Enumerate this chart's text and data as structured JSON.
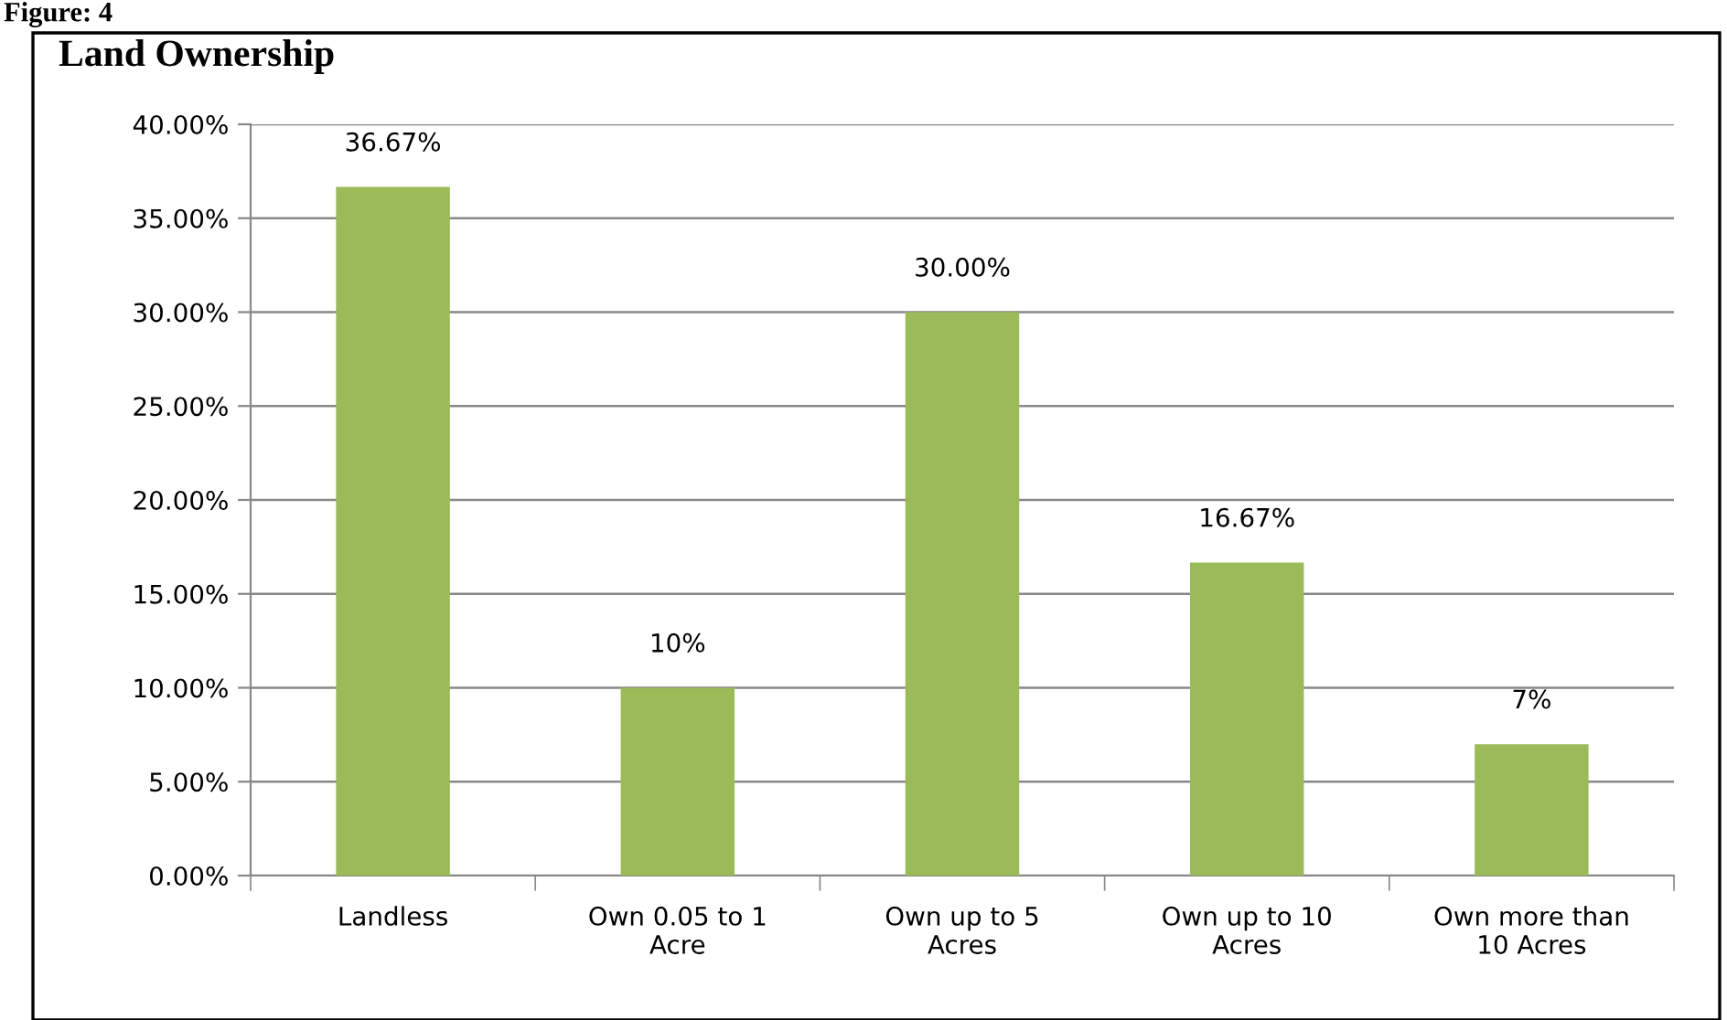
{
  "chart_data": {
    "type": "bar",
    "title": "Land Ownership",
    "annotations": [
      "Figure: 4"
    ],
    "categories": [
      "Landless",
      "Own 0.05 to 1\nAcre",
      "Own up to 5\nAcres",
      "Own up to 10\nAcres",
      "Own more than\n10 Acres"
    ],
    "values": [
      36.67,
      10,
      30,
      16.67,
      7
    ],
    "value_labels": [
      "36.67%",
      "10%",
      "30.00%",
      "16.67%",
      "7%"
    ],
    "color": "#9bbb59",
    "ylim": [
      0,
      40
    ],
    "yticks": [
      {
        "value": 0,
        "label": "0.00%"
      },
      {
        "value": 5,
        "label": "5.00%"
      },
      {
        "value": 10,
        "label": "10.00%"
      },
      {
        "value": 15,
        "label": "15.00%"
      },
      {
        "value": 20,
        "label": "20.00%"
      },
      {
        "value": 25,
        "label": "25.00%"
      },
      {
        "value": 30,
        "label": "30.00%"
      },
      {
        "value": 35,
        "label": "35.00%"
      },
      {
        "value": 40,
        "label": "40.00%"
      }
    ],
    "grid": "y",
    "legend": false
  }
}
